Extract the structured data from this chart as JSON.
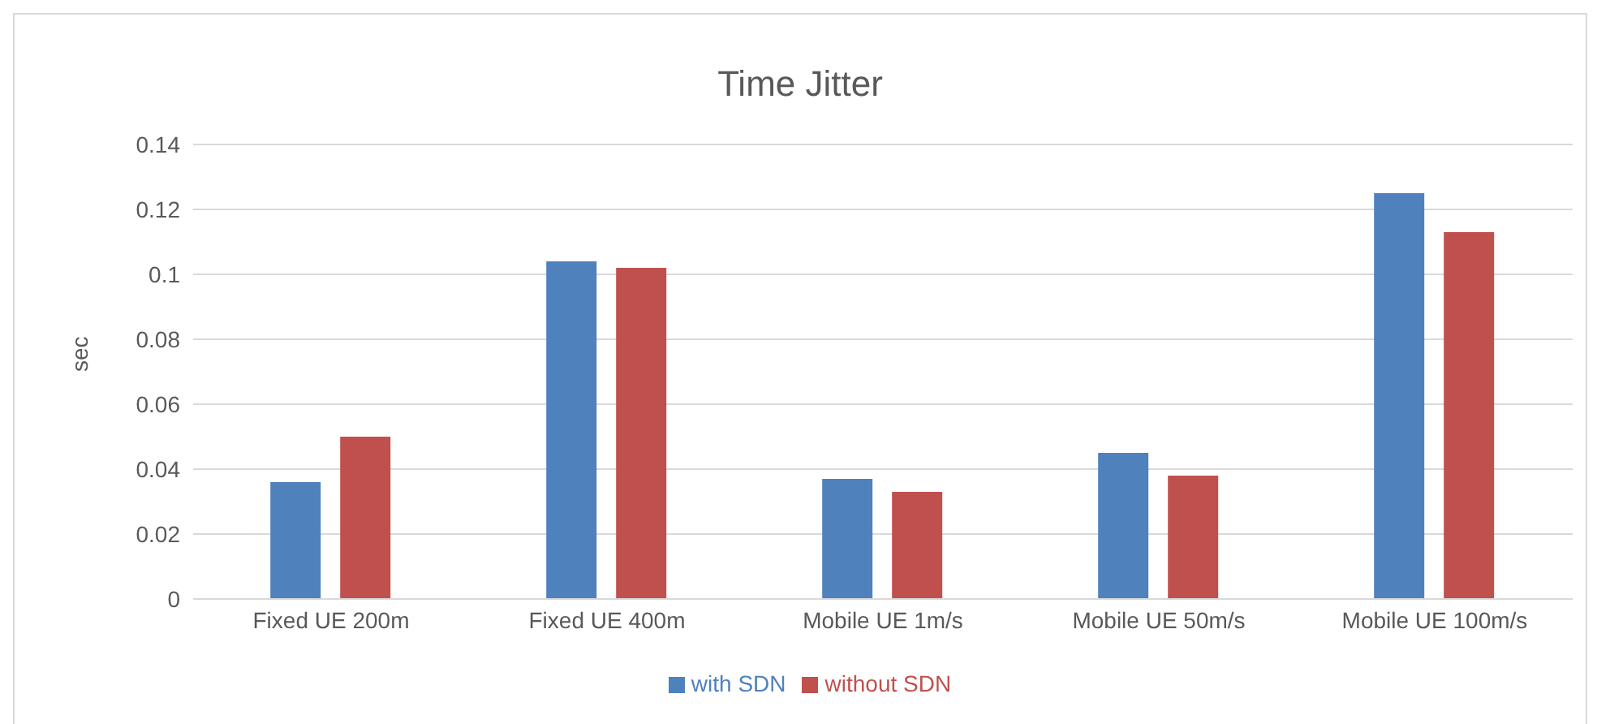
{
  "chart_data": {
    "type": "bar",
    "title": "Time Jitter",
    "ylabel": "sec",
    "categories": [
      "Fixed UE 200m",
      "Fixed UE 400m",
      "Mobile UE 1m/s",
      "Mobile UE 50m/s",
      "Mobile UE 100m/s"
    ],
    "series": [
      {
        "name": "with SDN",
        "color": "#4f81bd",
        "values": [
          0.036,
          0.104,
          0.037,
          0.045,
          0.125
        ]
      },
      {
        "name": "without SDN",
        "color": "#c0504d",
        "values": [
          0.05,
          0.102,
          0.033,
          0.038,
          0.113
        ]
      }
    ],
    "ylim": [
      0,
      0.14
    ],
    "yticks": [
      0,
      0.02,
      0.04,
      0.06,
      0.08,
      0.1,
      0.12,
      0.14
    ],
    "grid": "y",
    "legend": "bottom"
  }
}
